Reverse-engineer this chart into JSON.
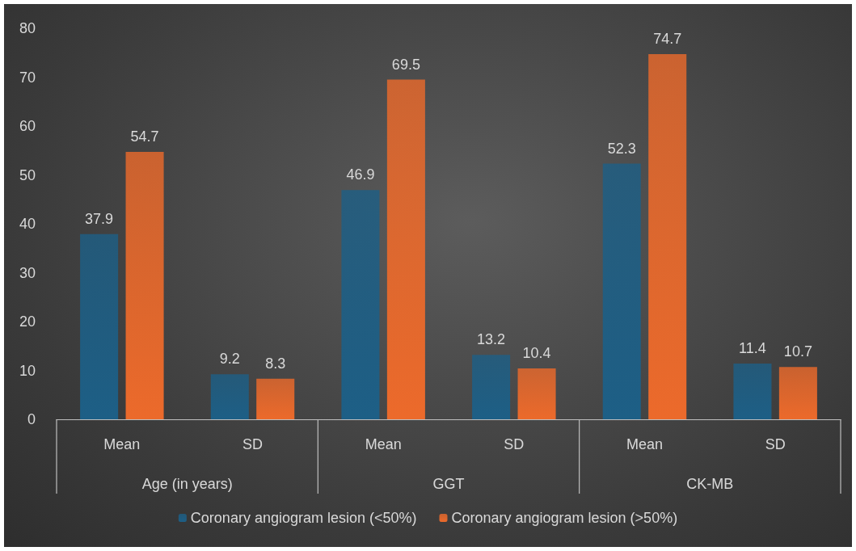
{
  "chart_data": {
    "type": "bar",
    "categories": [
      "Mean",
      "SD",
      "Mean",
      "SD",
      "Mean",
      "SD"
    ],
    "series": [
      {
        "name": "Coronary angiogram lesion (<50%)",
        "color": "#1d5f86",
        "values": [
          37.9,
          9.2,
          46.9,
          13.2,
          52.3,
          11.4
        ]
      },
      {
        "name": "Coronary angiogram lesion (>50%)",
        "color": "#ec6a2b",
        "values": [
          54.7,
          8.3,
          69.5,
          10.4,
          74.7,
          10.7
        ]
      }
    ],
    "annotations": [
      "Age (in years)",
      "GGT",
      "CK-MB"
    ],
    "ylim": [
      0,
      80
    ],
    "yticks": [
      0,
      10,
      20,
      30,
      40,
      50,
      60,
      70,
      80
    ],
    "data_labels": true,
    "grid": false,
    "legend": "bottom"
  }
}
